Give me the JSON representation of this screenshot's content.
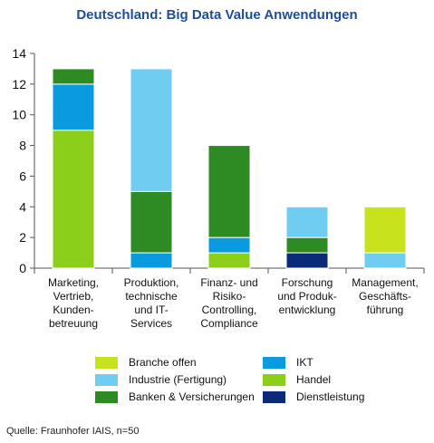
{
  "chart_data": {
    "type": "bar",
    "stacked": true,
    "title": "Deutschland: Big Data Value Anwendungen",
    "xlabel": "",
    "ylabel": "",
    "ylim": [
      0,
      14
    ],
    "yticks": [
      0,
      2,
      4,
      6,
      8,
      10,
      12,
      14
    ],
    "grid": false,
    "legend_position": "bottom",
    "categories": [
      [
        "Marketing,",
        "Vertrieb,",
        "Kunden-",
        "betreuung"
      ],
      [
        "Produktion,",
        "technische",
        "und IT-",
        "Services"
      ],
      [
        "Finanz- und",
        "Risiko-",
        "Controlling,",
        "Compliance"
      ],
      [
        "Forschung",
        "und Produk-",
        "entwicklung"
      ],
      [
        "Management,",
        "Geschäfts-",
        "führung"
      ]
    ],
    "series": [
      {
        "name": "Dienstleistung",
        "color": "#0b2a78",
        "values": [
          0,
          0,
          0,
          1,
          0
        ]
      },
      {
        "name": "Handel",
        "color": "#8ccf1a",
        "values": [
          9,
          0,
          1,
          0,
          0
        ]
      },
      {
        "name": "IKT",
        "color": "#0a9ae0",
        "values": [
          3,
          1,
          1,
          0,
          0
        ]
      },
      {
        "name": "Banken & Versicherungen",
        "color": "#2e8b23",
        "values": [
          1,
          4,
          6,
          1,
          0
        ]
      },
      {
        "name": "Industrie (Fertigung)",
        "color": "#6fcdf2",
        "values": [
          0,
          8,
          0,
          2,
          1
        ]
      },
      {
        "name": "Branche offen",
        "color": "#c9e21e",
        "values": [
          0,
          0,
          0,
          0,
          3
        ]
      }
    ],
    "legend_order": [
      [
        "Branche offen",
        "IKT"
      ],
      [
        "Industrie (Fertigung)",
        "Handel"
      ],
      [
        "Banken & Versicherungen",
        "Dienstleistung"
      ]
    ]
  },
  "source": "Quelle: Fraunhofer IAIS, n=50"
}
